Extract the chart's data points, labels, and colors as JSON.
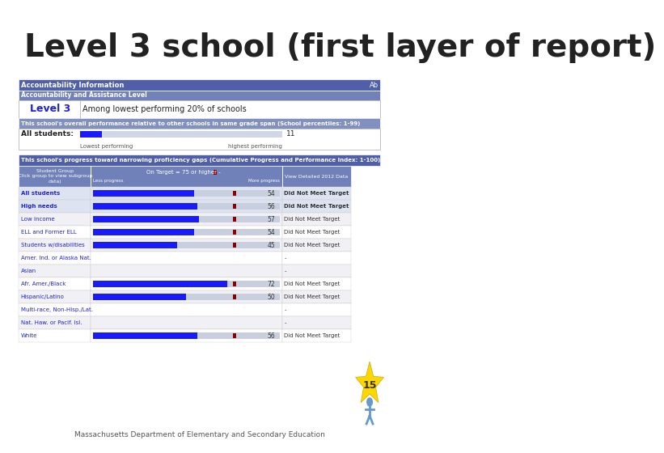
{
  "title": "Level 3 school (first layer of report)",
  "title_fontsize": 28,
  "title_color": "#222222",
  "background_color": "#ffffff",
  "slide_number": "15",
  "footer_text": "Massachusetts Department of Elementary and Secondary Education",
  "header1_text": "Accountability Information",
  "header1_bg": "#4F5FA8",
  "header1_color": "#ffffff",
  "header2_text": "Accountability and Assistance Level",
  "header2_bg": "#7080B8",
  "header2_color": "#ffffff",
  "level_label": "Level 3",
  "level_desc": "Among lowest performing 20% of schools",
  "perf_header_text": "This school's overall performance relative to other schools in same grade span (School percentiles: 1-99)",
  "perf_header_bg": "#8090C0",
  "perf_header_color": "#ffffff",
  "all_students_label": "All students:",
  "all_students_value": "11",
  "lowest_label": "Lowest performing",
  "highest_label": "highest performing",
  "bar_bg": "#d0d8e8",
  "progress_header_text": "This school's progress toward narrowing proficiency gaps (Cumulative Progress and Performance Index: 1-100)",
  "progress_header_bg": "#4F5FA8",
  "progress_header_color": "#ffffff",
  "col_detail_header": "View Detailed 2012 Data",
  "col_bg": "#7080B8",
  "col_color": "#ffffff",
  "student_groups": [
    {
      "name": "All students",
      "bar": 0.54,
      "value": "54",
      "status": "Did Not Meet Target",
      "bold": true,
      "shaded": true
    },
    {
      "name": "High needs",
      "bar": 0.56,
      "value": "56",
      "status": "Did Not Meet Target",
      "bold": true,
      "shaded": true
    },
    {
      "name": "Low income",
      "bar": 0.57,
      "value": "57",
      "status": "Did Not Meet Target",
      "bold": false,
      "shaded": false
    },
    {
      "name": "ELL and Former ELL",
      "bar": 0.54,
      "value": "54",
      "status": "Did Not Meet Target",
      "bold": false,
      "shaded": false
    },
    {
      "name": "Students w/disabilities",
      "bar": 0.45,
      "value": "45",
      "status": "Did Not Meet Target",
      "bold": false,
      "shaded": false
    },
    {
      "name": "Amer. Ind. or Alaska Nat.",
      "bar": null,
      "value": "",
      "status": "-",
      "bold": false,
      "shaded": false
    },
    {
      "name": "Asian",
      "bar": null,
      "value": "",
      "status": "-",
      "bold": false,
      "shaded": false
    },
    {
      "name": "Afr. Amer./Black",
      "bar": 0.72,
      "value": "72",
      "status": "Did Not Meet Target",
      "bold": false,
      "shaded": false
    },
    {
      "name": "Hispanic/Latino",
      "bar": 0.5,
      "value": "50",
      "status": "Did Not Meet Target",
      "bold": false,
      "shaded": false
    },
    {
      "name": "Multi-race, Non-Hisp./Lat.",
      "bar": null,
      "value": "",
      "status": "-",
      "bold": false,
      "shaded": false
    },
    {
      "name": "Nat. Haw. or Pacif. Isl.",
      "bar": null,
      "value": "",
      "status": "-",
      "bold": false,
      "shaded": false
    },
    {
      "name": "White",
      "bar": 0.56,
      "value": "56",
      "status": "Did Not Meet Target",
      "bold": false,
      "shaded": false
    }
  ],
  "target_line": 0.75,
  "name_color": "#2222cc",
  "bar_color": "#1a1aff",
  "target_square_color": "#8B0000",
  "star_color": "#FFD700",
  "person_color": "#6699cc"
}
